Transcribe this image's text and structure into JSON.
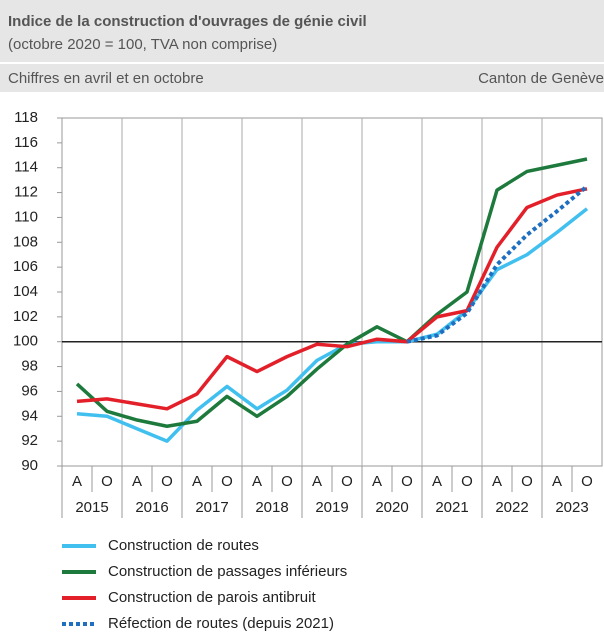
{
  "chart_data": {
    "type": "line",
    "title": "Indice de la construction d'ouvrages de génie civil",
    "subtitle": "(octobre 2020 = 100, TVA non comprise)",
    "note_left": "Chiffres en avril et en octobre",
    "note_right": "Canton de Genève",
    "categories": [
      "A",
      "O",
      "A",
      "O",
      "A",
      "O",
      "A",
      "O",
      "A",
      "O",
      "A",
      "O",
      "A",
      "O",
      "A",
      "O",
      "A",
      "O"
    ],
    "years": [
      "2015",
      "2016",
      "2017",
      "2018",
      "2019",
      "2020",
      "2021",
      "2022",
      "2023"
    ],
    "ylim": [
      90,
      118
    ],
    "yticks": [
      90,
      92,
      94,
      96,
      98,
      100,
      102,
      104,
      106,
      108,
      110,
      112,
      114,
      116,
      118
    ],
    "reference_line": 100,
    "series": [
      {
        "name": "Construction de routes",
        "color": "#41c0f0",
        "style": "solid",
        "values": [
          94.2,
          94.0,
          93.0,
          92.0,
          94.5,
          96.4,
          94.6,
          96.1,
          98.5,
          99.8,
          100.0,
          100.0,
          100.6,
          102.5,
          105.8,
          107.0,
          108.8,
          110.7
        ]
      },
      {
        "name": "Construction de passages inférieurs",
        "color": "#1e7a3c",
        "style": "solid",
        "values": [
          96.6,
          94.4,
          93.7,
          93.2,
          93.6,
          95.6,
          94.0,
          95.6,
          97.8,
          99.8,
          101.2,
          100.0,
          102.2,
          104.0,
          112.2,
          113.7,
          114.2,
          114.7
        ]
      },
      {
        "name": "Construction de parois antibruit",
        "color": "#e3202a",
        "style": "solid",
        "values": [
          95.2,
          95.4,
          95.0,
          94.6,
          95.8,
          98.8,
          97.6,
          98.8,
          99.8,
          99.6,
          100.2,
          100.0,
          102.0,
          102.5,
          107.6,
          110.8,
          111.8,
          112.3
        ]
      },
      {
        "name": "Réfection de routes (depuis 2021)",
        "color": "#1f6fc0",
        "style": "dotted",
        "values": [
          null,
          null,
          null,
          null,
          null,
          null,
          null,
          null,
          null,
          null,
          null,
          100.0,
          100.5,
          102.3,
          106.2,
          108.6,
          110.5,
          112.5
        ]
      }
    ]
  }
}
